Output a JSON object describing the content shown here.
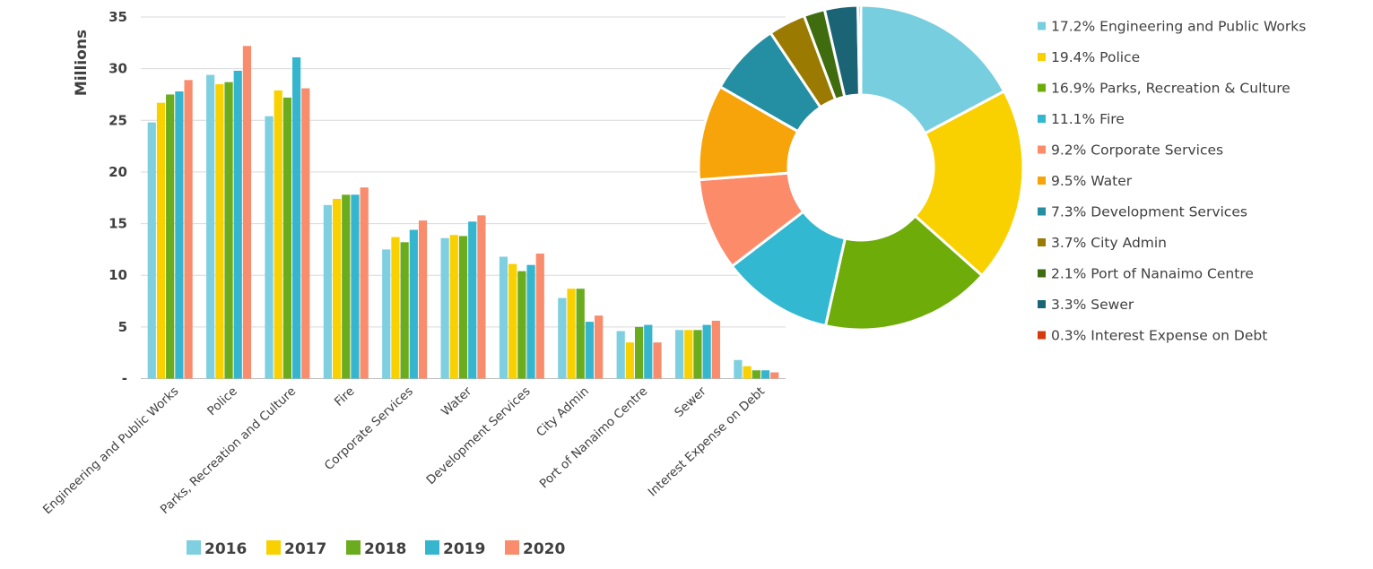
{
  "chart_data": [
    {
      "type": "bar",
      "title": "",
      "ylabel": "Millions",
      "ylim": [
        0,
        35
      ],
      "ytick_values": [
        0,
        5,
        10,
        15,
        20,
        25,
        30,
        35
      ],
      "ytick_labels": [
        "-",
        "5",
        "10",
        "15",
        "20",
        "25",
        "30",
        "35"
      ],
      "grid": true,
      "legend_position": "bottom",
      "categories": [
        "Engineering and Public Works",
        "Police",
        "Parks, Recreation and Culture",
        "Fire",
        "Corporate Services",
        "Water",
        "Development Services",
        "City Admin",
        "Port of Nanaimo Centre",
        "Sewer",
        "Interest Expense on Debt"
      ],
      "series": [
        {
          "name": "2016",
          "color": "#7ED0E0",
          "values": [
            24.8,
            29.4,
            25.4,
            16.8,
            12.5,
            13.6,
            11.8,
            7.8,
            4.6,
            4.7,
            1.8
          ]
        },
        {
          "name": "2017",
          "color": "#F9D100",
          "values": [
            26.7,
            28.5,
            27.9,
            17.4,
            13.7,
            13.9,
            11.1,
            8.7,
            3.5,
            4.7,
            1.2
          ]
        },
        {
          "name": "2018",
          "color": "#6AAC1E",
          "values": [
            27.5,
            28.7,
            27.2,
            17.8,
            13.2,
            13.8,
            10.4,
            8.7,
            5.0,
            4.7,
            0.8
          ]
        },
        {
          "name": "2019",
          "color": "#36B5CF",
          "values": [
            27.8,
            29.8,
            31.1,
            17.8,
            14.4,
            15.2,
            11.0,
            5.5,
            5.2,
            5.2,
            0.8
          ]
        },
        {
          "name": "2020",
          "color": "#F88C6C",
          "values": [
            28.9,
            32.2,
            28.1,
            18.5,
            15.3,
            15.8,
            12.1,
            6.1,
            3.5,
            5.6,
            0.6
          ]
        }
      ]
    },
    {
      "type": "pie",
      "title": "",
      "donut": true,
      "legend_position": "right",
      "slices": [
        {
          "label": "Engineering and Public Works",
          "value": 17.2,
          "display": "17.2%",
          "color": "#77CEDF"
        },
        {
          "label": "Police",
          "value": 19.4,
          "display": "19.4%",
          "color": "#F9D100"
        },
        {
          "label": "Parks, Recreation & Culture",
          "value": 16.9,
          "display": "16.9%",
          "color": "#6EAC0A"
        },
        {
          "label": "Fire",
          "value": 11.1,
          "display": "11.1%",
          "color": "#33B8D1"
        },
        {
          "label": "Corporate Services",
          "value": 9.2,
          "display": "9.2%",
          "color": "#FC8B6A"
        },
        {
          "label": "Water",
          "value": 9.5,
          "display": "9.5%",
          "color": "#F7A30A"
        },
        {
          "label": "Development Services",
          "value": 7.3,
          "display": "7.3%",
          "color": "#248EA3"
        },
        {
          "label": "City Admin",
          "value": 3.7,
          "display": "3.7%",
          "color": "#9A7A00"
        },
        {
          "label": "Port of Nanaimo Centre",
          "value": 2.1,
          "display": "2.1%",
          "color": "#3F6C0E"
        },
        {
          "label": "Sewer",
          "value": 3.3,
          "display": "3.3%",
          "color": "#1B6476"
        },
        {
          "label": "Interest Expense on Debt",
          "value": 0.3,
          "display": "0.3%",
          "color": "#D43A0A"
        }
      ]
    }
  ]
}
